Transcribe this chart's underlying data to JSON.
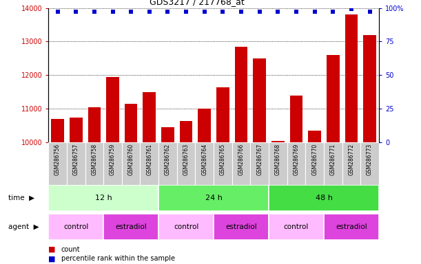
{
  "title": "GDS3217 / 217768_at",
  "samples": [
    "GSM286756",
    "GSM286757",
    "GSM286758",
    "GSM286759",
    "GSM286760",
    "GSM286761",
    "GSM286762",
    "GSM286763",
    "GSM286764",
    "GSM286765",
    "GSM286766",
    "GSM286767",
    "GSM286768",
    "GSM286769",
    "GSM286770",
    "GSM286771",
    "GSM286772",
    "GSM286773"
  ],
  "counts": [
    10700,
    10750,
    11050,
    11950,
    11150,
    11500,
    10450,
    10650,
    11000,
    11650,
    12850,
    12500,
    10050,
    11400,
    10350,
    12600,
    13800,
    13200
  ],
  "percentile_ranks": [
    97,
    97,
    97,
    97,
    97,
    97,
    97,
    97,
    97,
    97,
    97,
    97,
    97,
    97,
    97,
    97,
    99,
    97
  ],
  "bar_color": "#cc0000",
  "dot_color": "#0000cc",
  "ylim_left": [
    10000,
    14000
  ],
  "ylim_right": [
    0,
    100
  ],
  "yticks_left": [
    10000,
    11000,
    12000,
    13000,
    14000
  ],
  "yticks_right": [
    0,
    25,
    50,
    75,
    100
  ],
  "yticklabels_right": [
    "0",
    "25",
    "50",
    "75",
    "100%"
  ],
  "time_groups": [
    {
      "label": "12 h",
      "start": 0,
      "end": 6,
      "color": "#ccffcc"
    },
    {
      "label": "24 h",
      "start": 6,
      "end": 12,
      "color": "#66ee66"
    },
    {
      "label": "48 h",
      "start": 12,
      "end": 18,
      "color": "#44dd44"
    }
  ],
  "agent_groups": [
    {
      "label": "control",
      "start": 0,
      "end": 3,
      "color": "#ffbbff"
    },
    {
      "label": "estradiol",
      "start": 3,
      "end": 6,
      "color": "#dd44dd"
    },
    {
      "label": "control",
      "start": 6,
      "end": 9,
      "color": "#ffbbff"
    },
    {
      "label": "estradiol",
      "start": 9,
      "end": 12,
      "color": "#dd44dd"
    },
    {
      "label": "control",
      "start": 12,
      "end": 15,
      "color": "#ffbbff"
    },
    {
      "label": "estradiol",
      "start": 15,
      "end": 18,
      "color": "#dd44dd"
    }
  ],
  "tick_bg_color": "#cccccc",
  "bar_bottom": 10000
}
